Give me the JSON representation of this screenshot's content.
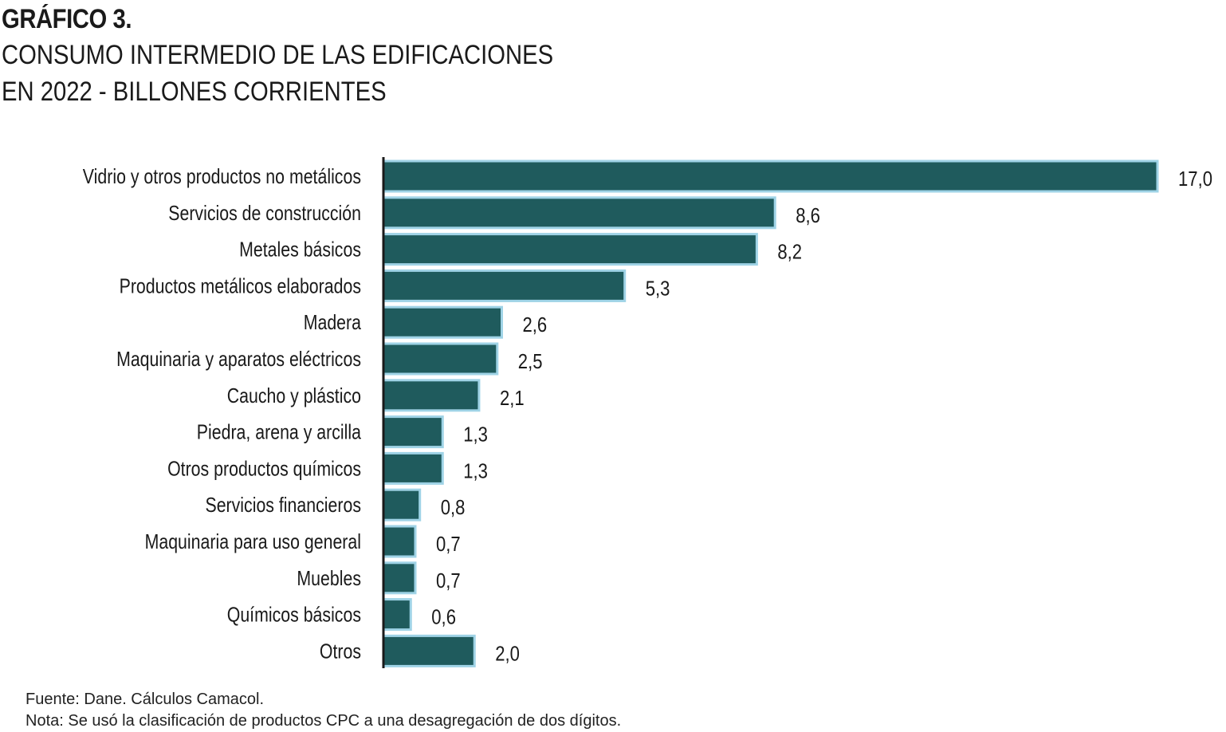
{
  "figure_label": "GRÁFICO 3.",
  "title_line1": "CONSUMO INTERMEDIO DE LAS EDIFICACIONES",
  "title_line2": "EN 2022 - BILLONES CORRIENTES",
  "chart_data": {
    "type": "bar",
    "orientation": "horizontal",
    "title": "CONSUMO INTERMEDIO DE LAS EDIFICACIONES EN 2022 - BILLONES CORRIENTES",
    "categories": [
      "Vidrio y otros productos no metálicos",
      "Servicios de construcción",
      "Metales básicos",
      "Productos metálicos elaborados",
      "Madera",
      "Maquinaria y aparatos eléctricos",
      "Caucho y plástico",
      "Piedra, arena y arcilla",
      "Otros productos químicos",
      "Servicios financieros",
      "Maquinaria para uso general",
      "Muebles",
      "Químicos básicos",
      "Otros"
    ],
    "values": [
      17.0,
      8.6,
      8.2,
      5.3,
      2.6,
      2.5,
      2.1,
      1.3,
      1.3,
      0.8,
      0.7,
      0.7,
      0.6,
      2.0
    ],
    "value_labels": [
      "17,0",
      "8,6",
      "8,2",
      "5,3",
      "2,6",
      "2,5",
      "2,1",
      "1,3",
      "1,3",
      "0,8",
      "0,7",
      "0,7",
      "0,6",
      "2,0"
    ],
    "xlabel": "",
    "ylabel": "",
    "xlim": [
      0,
      17
    ],
    "grid": false,
    "legend": "none",
    "bar_color": "#1f5b5d",
    "bar_outline_color": "#9fd3e6"
  },
  "footer": {
    "source": "Fuente: Dane. Cálculos Camacol.",
    "note": "Nota: Se usó la clasificación de productos CPC a una desagregación de dos dígitos."
  }
}
